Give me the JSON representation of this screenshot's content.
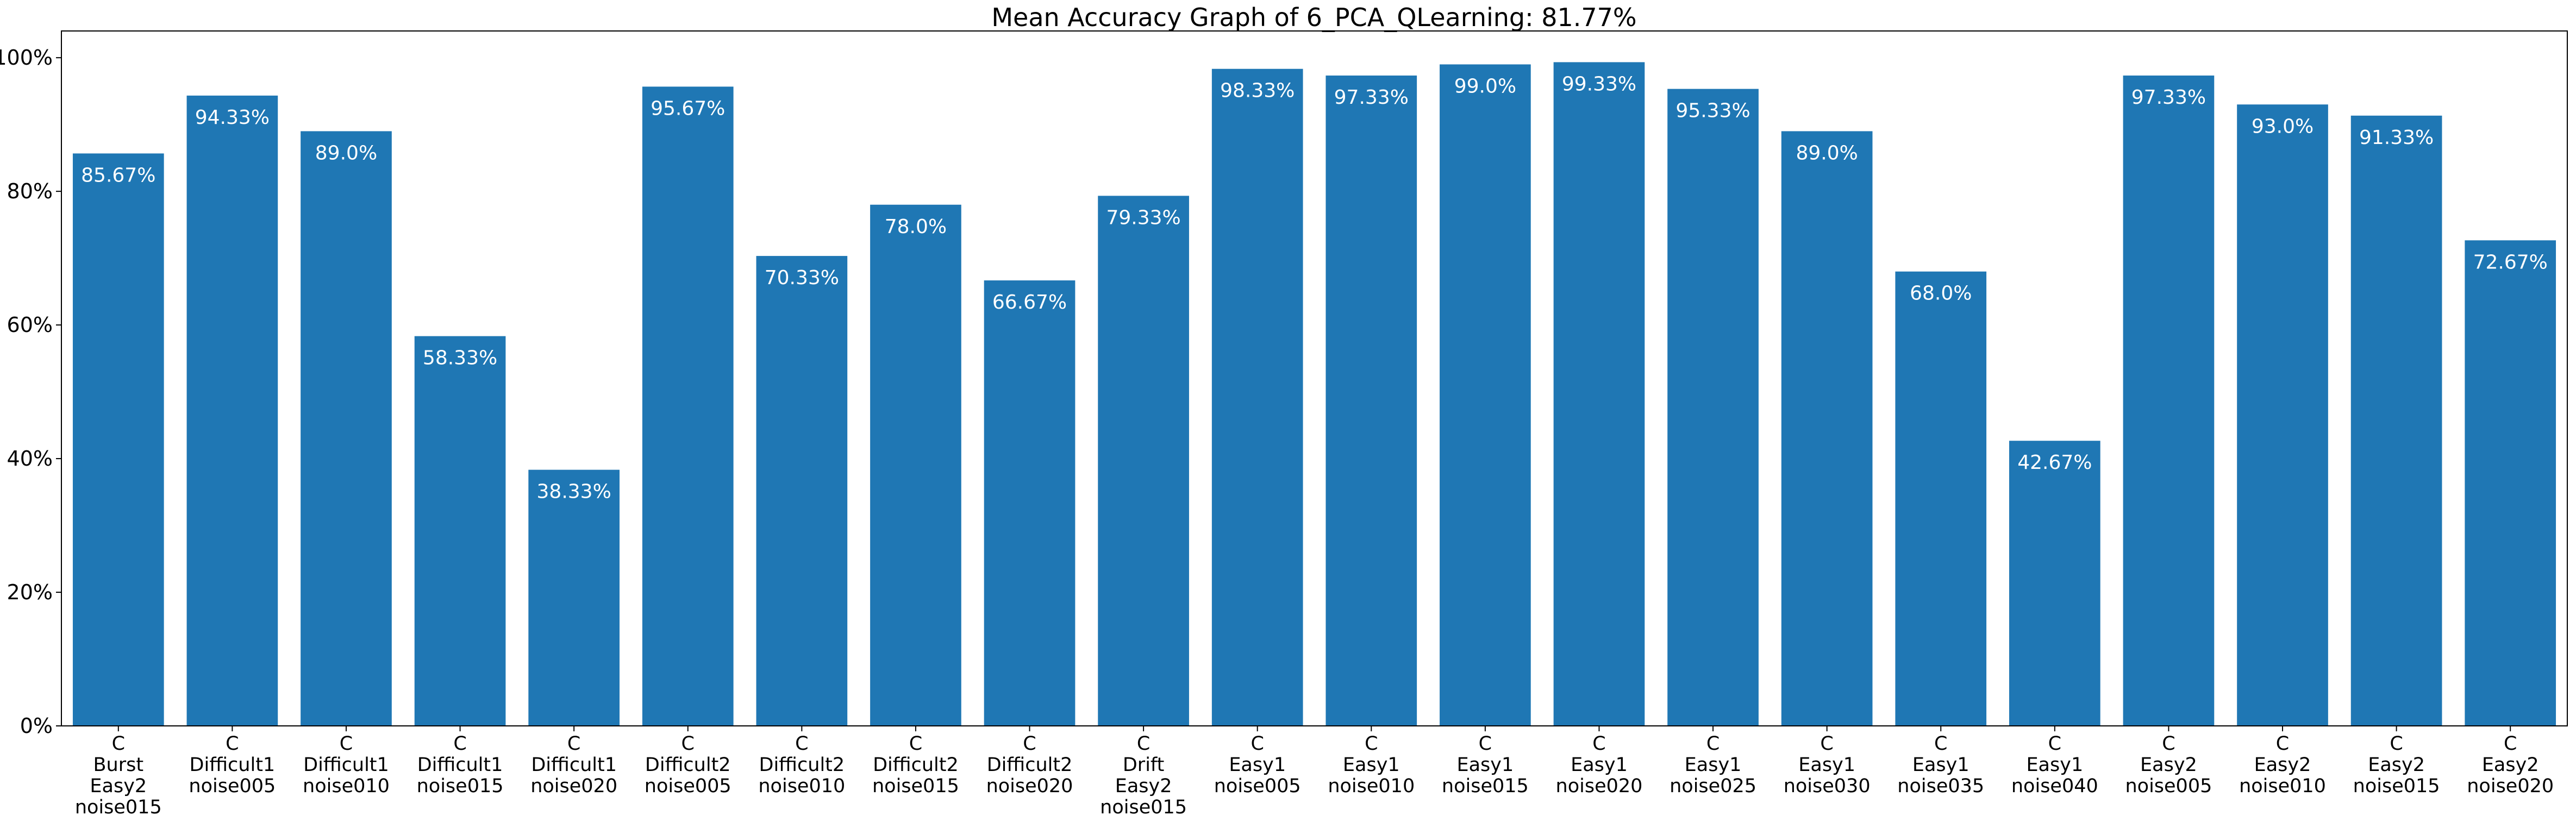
{
  "chart_data": {
    "type": "bar",
    "title": "Mean Accuracy Graph of 6_PCA_QLearning: 81.77%",
    "xlabel": "",
    "ylabel": "",
    "ylim": [
      0,
      104
    ],
    "y_ticks": [
      0,
      20,
      40,
      60,
      80,
      100
    ],
    "y_tick_labels": [
      "0%",
      "20%",
      "40%",
      "60%",
      "80%",
      "100%"
    ],
    "grid": false,
    "bar_color": "#1f77b4",
    "data_label_color": "#ffffff",
    "categories": [
      [
        "C",
        "Burst",
        "Easy2",
        "noise015"
      ],
      [
        "C",
        "Difficult1",
        "noise005"
      ],
      [
        "C",
        "Difficult1",
        "noise010"
      ],
      [
        "C",
        "Difficult1",
        "noise015"
      ],
      [
        "C",
        "Difficult1",
        "noise020"
      ],
      [
        "C",
        "Difficult2",
        "noise005"
      ],
      [
        "C",
        "Difficult2",
        "noise010"
      ],
      [
        "C",
        "Difficult2",
        "noise015"
      ],
      [
        "C",
        "Difficult2",
        "noise020"
      ],
      [
        "C",
        "Drift",
        "Easy2",
        "noise015"
      ],
      [
        "C",
        "Easy1",
        "noise005"
      ],
      [
        "C",
        "Easy1",
        "noise010"
      ],
      [
        "C",
        "Easy1",
        "noise015"
      ],
      [
        "C",
        "Easy1",
        "noise020"
      ],
      [
        "C",
        "Easy1",
        "noise025"
      ],
      [
        "C",
        "Easy1",
        "noise030"
      ],
      [
        "C",
        "Easy1",
        "noise035"
      ],
      [
        "C",
        "Easy1",
        "noise040"
      ],
      [
        "C",
        "Easy2",
        "noise005"
      ],
      [
        "C",
        "Easy2",
        "noise010"
      ],
      [
        "C",
        "Easy2",
        "noise015"
      ],
      [
        "C",
        "Easy2",
        "noise020"
      ]
    ],
    "values": [
      85.67,
      94.33,
      89.0,
      58.33,
      38.33,
      95.67,
      70.33,
      78.0,
      66.67,
      79.33,
      98.33,
      97.33,
      99.0,
      99.33,
      95.33,
      89.0,
      68.0,
      42.67,
      97.33,
      93.0,
      91.33,
      72.67
    ],
    "data_labels": [
      "85.67%",
      "94.33%",
      "89.0%",
      "58.33%",
      "38.33%",
      "95.67%",
      "70.33%",
      "78.0%",
      "66.67%",
      "79.33%",
      "98.33%",
      "97.33%",
      "99.0%",
      "99.33%",
      "95.33%",
      "89.0%",
      "68.0%",
      "42.67%",
      "97.33%",
      "93.0%",
      "91.33%",
      "72.67%"
    ]
  }
}
